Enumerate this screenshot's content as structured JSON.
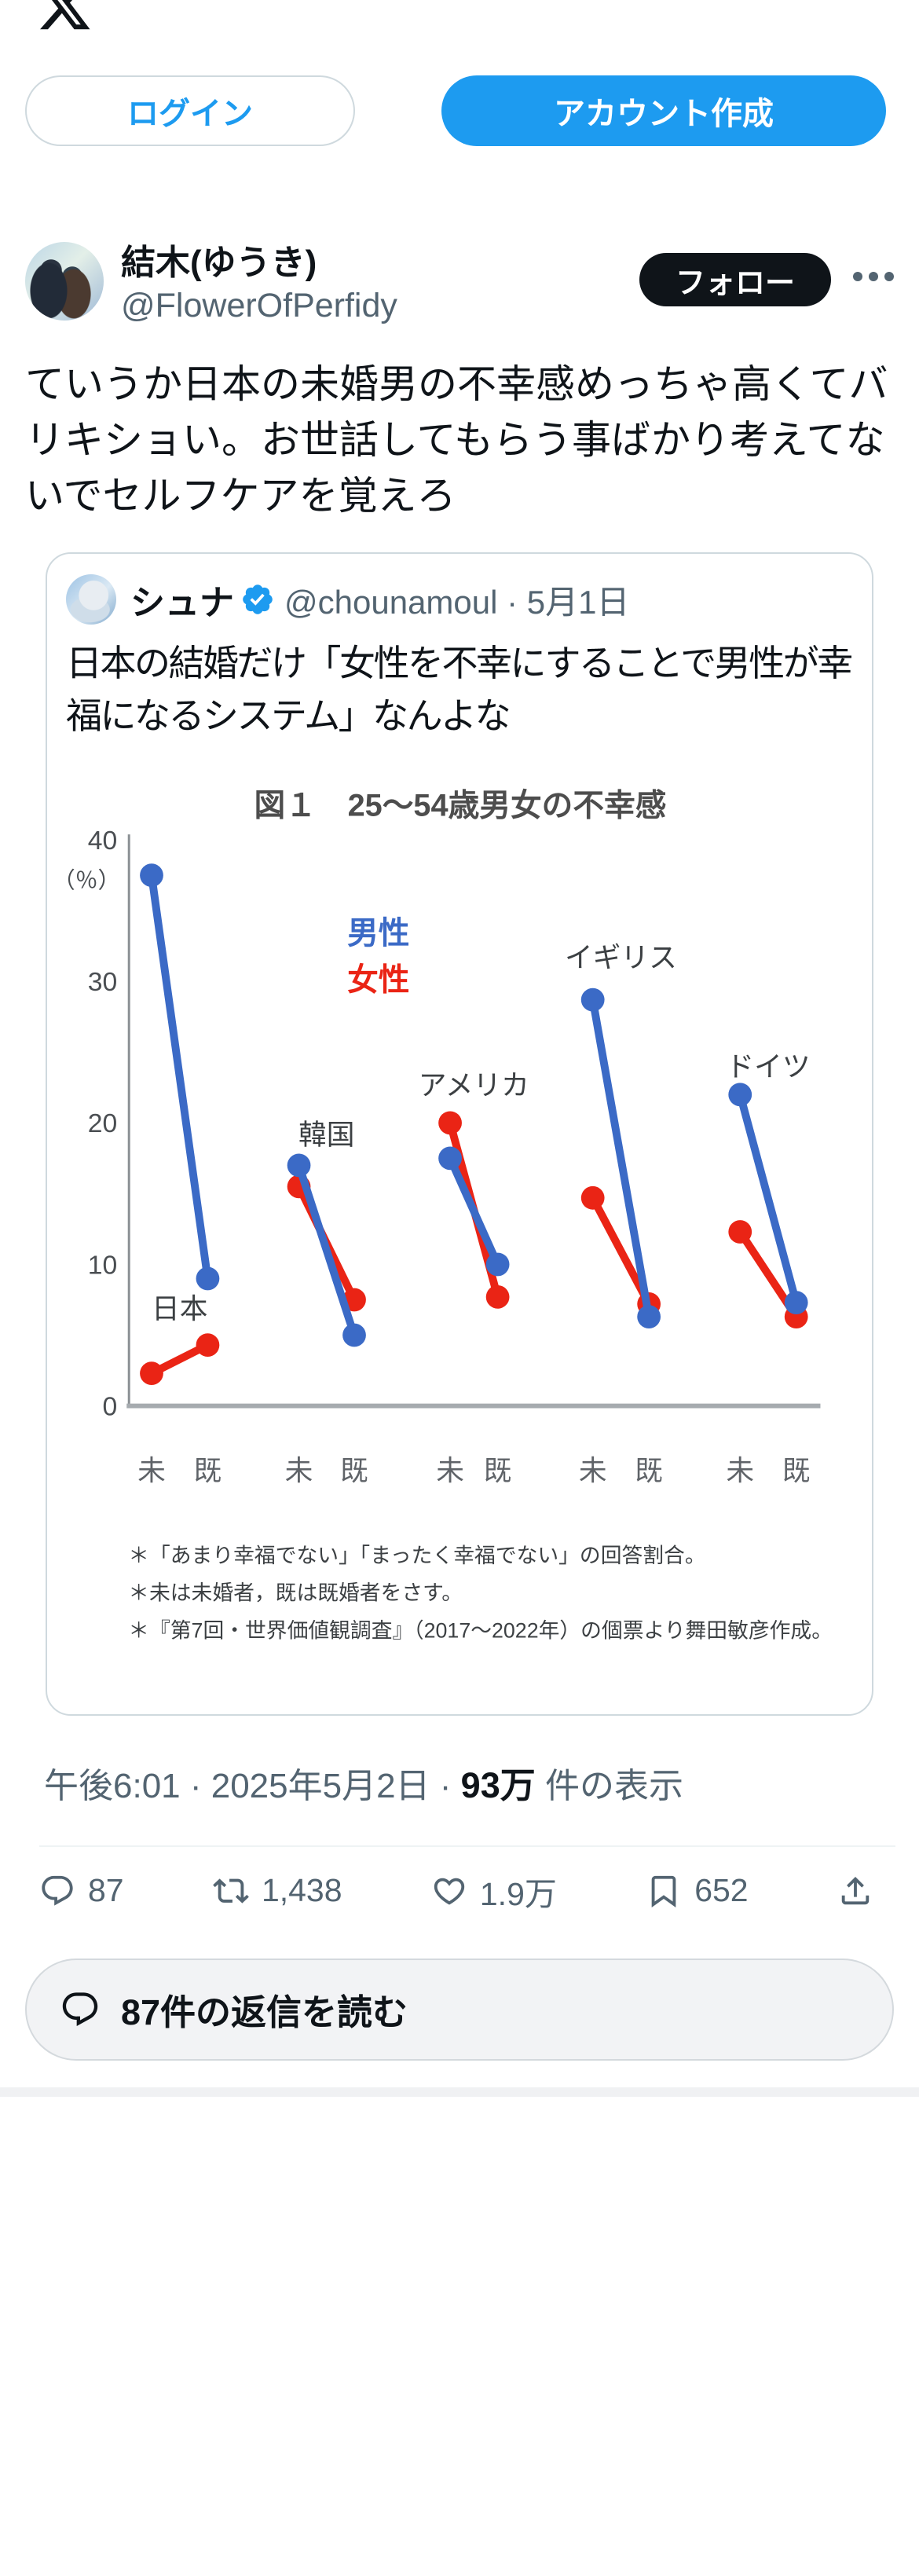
{
  "header": {
    "login_label": "ログイン",
    "signup_label": "アカウント作成"
  },
  "tweet": {
    "display_name": "結木(ゆうき)",
    "handle": "@FlowerOfPerfidy",
    "follow_label": "フォロー",
    "body": "ていうか日本の未婚男の不幸感めっちゃ高くてバリキショい。お世話してもらう事ばかり考えてないでセルフケアを覚えろ",
    "time_date": "午後6:01 · 2025年5月2日 · ",
    "views_count": "93万",
    "views_suffix": " 件の表示",
    "stats": {
      "replies": "87",
      "reposts": "1,438",
      "likes": "1.9万",
      "bookmarks": "652"
    },
    "read_replies_label": "87件の返信を読む"
  },
  "quote": {
    "display_name": "シュナ",
    "meta": "@chounamoul · 5月1日",
    "body": "日本の結婚だけ「女性を不幸にすることで男性が幸福になるシステム」なんよな"
  },
  "chart_data": {
    "type": "line",
    "title": "図１　25〜54歳男女の不幸感",
    "ylabel": "（％）",
    "xlabel": "",
    "ylim": [
      0,
      40
    ],
    "yticks": [
      40,
      30,
      20,
      10,
      0
    ],
    "x_tick_labels": [
      "未",
      "既"
    ],
    "grid": false,
    "legend_position": "upper-center",
    "legend": [
      {
        "name": "男性",
        "color": "#3b6ac6"
      },
      {
        "name": "女性",
        "color": "#ea2415"
      }
    ],
    "groups": [
      {
        "country": "日本",
        "men": [
          37.5,
          9.0
        ],
        "women": [
          2.3,
          4.3
        ],
        "label_y": 6.2
      },
      {
        "country": "韓国",
        "men": [
          17.0,
          5.0
        ],
        "women": [
          15.5,
          7.5
        ],
        "label_y": 18.5
      },
      {
        "country": "アメリカ",
        "men": [
          17.5,
          10.0
        ],
        "women": [
          20.0,
          7.7
        ],
        "label_y": 22.0
      },
      {
        "country": "イギリス",
        "men": [
          28.7,
          6.3
        ],
        "women": [
          14.7,
          7.2
        ],
        "label_y": 31.0
      },
      {
        "country": "ドイツ",
        "men": [
          22.0,
          7.3
        ],
        "women": [
          12.3,
          6.3
        ],
        "label_y": 23.3
      }
    ],
    "footnotes": [
      "＊「あまり幸福でない」「まったく幸福でない」の回答割合。",
      "＊未は未婚者，既は既婚者をさす。",
      "＊『第7回・世界価値観調査』（2017〜2022年）の個票より舞田敏彦作成。"
    ]
  }
}
